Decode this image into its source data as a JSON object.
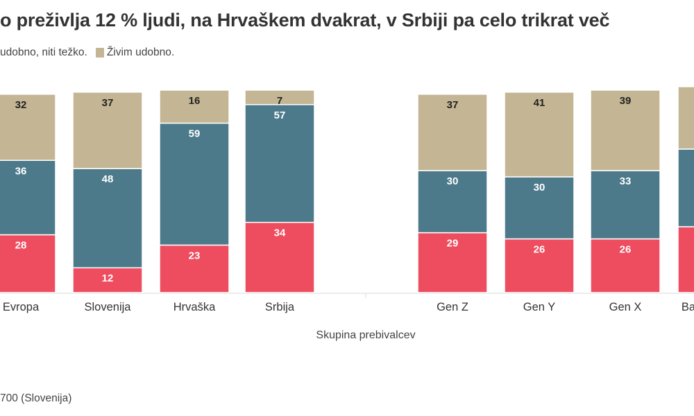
{
  "title": "o preživlja 12 % ljudi, na Hrvaškem dvakrat, v Srbiji pa celo trikrat več",
  "legend": {
    "partial_label": "udobno, niti težko.",
    "comfortable_label": "Živim udobno."
  },
  "footer": "700 (Slovenija)",
  "colors": {
    "hard": "#ee4d5f",
    "neutral": "#4c7a8b",
    "comfortable": "#c4b694"
  },
  "chart_data": {
    "type": "bar",
    "stacked": true,
    "xlabel": "Skupina prebivalcev",
    "ylim": [
      0,
      100
    ],
    "categories": [
      "Evropa",
      "Slovenija",
      "Hrvaška",
      "Srbija",
      "Gen Z",
      "Gen Y",
      "Gen X",
      "Ba"
    ],
    "series": [
      {
        "key": "hard",
        "values": [
          28,
          12,
          23,
          34,
          29,
          26,
          26,
          null
        ]
      },
      {
        "key": "neutral",
        "values": [
          36,
          48,
          59,
          57,
          30,
          30,
          33,
          null
        ]
      },
      {
        "name": "Živim udobno.",
        "key": "comfortable",
        "values": [
          32,
          37,
          16,
          7,
          37,
          41,
          39,
          null
        ]
      }
    ]
  }
}
